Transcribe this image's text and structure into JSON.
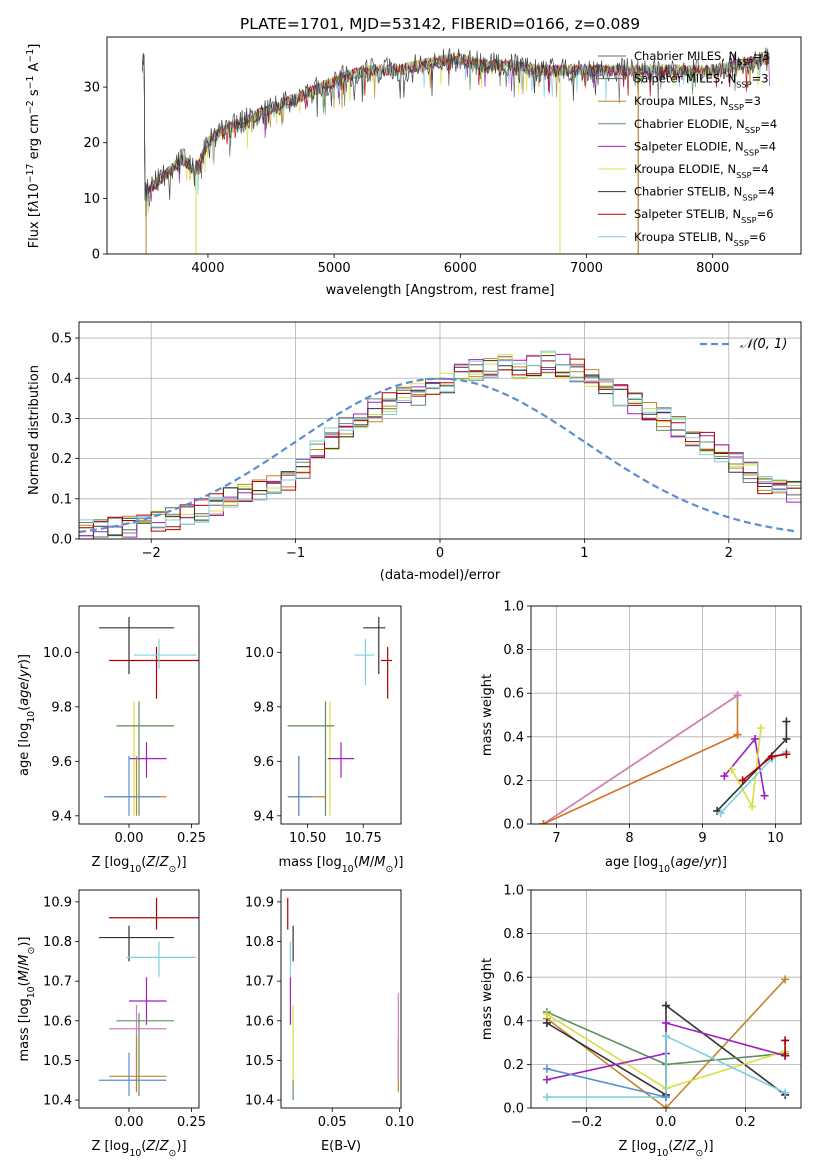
{
  "title": "PLATE=1701, MJD=53142, FIBERID=0166, z=0.089",
  "colors": {
    "CM": "#666666",
    "SM": "#666666",
    "KM": "#c0852c",
    "CE": "#5f8f5f",
    "SE": "#a020c0",
    "KE": "#d8e040",
    "CS": "#333333",
    "SS": "#b00000",
    "KS": "#80d0e0",
    "gauss": "#5b8fd0"
  },
  "chart_data": [
    {
      "type": "line",
      "id": "spectrum",
      "xlabel": "wavelength [Angstrom, rest frame]",
      "ylabel": "Flux [f",
      "xlim": [
        3200,
        8700
      ],
      "ylim": [
        0,
        39
      ],
      "xticks": [
        "4000",
        "5000",
        "6000",
        "7000",
        "8000"
      ],
      "yticks": [
        "0",
        "10",
        "20",
        "30"
      ],
      "legend": [
        "Chabrier MILES, N",
        "Salpeter MILES, N",
        "Kroupa MILES, N",
        "Chabrier ELODIE, N",
        "Salpeter ELODIE, N",
        "Kroupa ELODIE, N",
        "Chabrier STELIB, N",
        "Salpeter STELIB, N",
        "Kroupa STELIB, N"
      ],
      "legend_nssp": [
        "3",
        "3",
        "3",
        "4",
        "4",
        "4",
        "4",
        "6",
        "6"
      ],
      "legend_keys": [
        "CM",
        "SM",
        "KM",
        "CE",
        "SE",
        "KE",
        "CS",
        "SS",
        "KS"
      ],
      "data_envelope": {
        "x": [
          3500,
          3600,
          3800,
          3900,
          4000,
          4100,
          4300,
          4500,
          4700,
          4900,
          5000,
          5100,
          5300,
          5500,
          5700,
          5900,
          6000,
          6200,
          6400,
          6600,
          6800,
          7000,
          7200,
          7400,
          7600,
          7800,
          8000,
          8200,
          8400
        ],
        "y": [
          11,
          13,
          17,
          15,
          20,
          22,
          24,
          26,
          28,
          30,
          31,
          32,
          33,
          33,
          34,
          35,
          35,
          34,
          34,
          33,
          33,
          33,
          33,
          33,
          33,
          33,
          33,
          34,
          35
        ]
      }
    },
    {
      "type": "bar",
      "id": "residual-hist",
      "xlabel": "(data-model)/error",
      "ylabel": "Normed distribution",
      "xlim": [
        -2.5,
        2.5
      ],
      "ylim": [
        0,
        0.54
      ],
      "xticks": [
        "−2",
        "−1",
        "0",
        "1",
        "2"
      ],
      "yticks": [
        "0.0",
        "0.1",
        "0.2",
        "0.3",
        "0.4",
        "0.5"
      ],
      "legend": [
        "𝒩(0, 1)"
      ],
      "bin_width": 0.1,
      "bin_start": -2.5,
      "values": [
        0.018,
        0.022,
        0.026,
        0.03,
        0.035,
        0.043,
        0.05,
        0.058,
        0.07,
        0.085,
        0.1,
        0.11,
        0.12,
        0.13,
        0.15,
        0.18,
        0.22,
        0.25,
        0.28,
        0.3,
        0.32,
        0.335,
        0.35,
        0.36,
        0.38,
        0.39,
        0.41,
        0.42,
        0.43,
        0.44,
        0.42,
        0.43,
        0.44,
        0.43,
        0.42,
        0.41,
        0.39,
        0.36,
        0.34,
        0.32,
        0.3,
        0.28,
        0.26,
        0.24,
        0.22,
        0.19,
        0.17,
        0.14,
        0.13,
        0.12
      ]
    },
    {
      "type": "scatter",
      "id": "age-vs-Z",
      "xlabel": "Z [log",
      "ylabel": "age  [log",
      "xlim": [
        -0.2,
        0.28
      ],
      "ylim": [
        9.37,
        10.17
      ],
      "xticks": [
        "0.00",
        "0.25"
      ],
      "yticks": [
        "9.4",
        "9.6",
        "9.8",
        "10.0"
      ],
      "points": [
        {
          "k": "CS",
          "x": 0.0,
          "y": 10.09,
          "xe": [
            -0.12,
            0.18
          ],
          "ye": [
            9.92,
            10.13
          ]
        },
        {
          "k": "SS",
          "x": 0.11,
          "y": 9.97,
          "xe": [
            -0.08,
            0.28
          ],
          "ye": [
            9.83,
            10.02
          ]
        },
        {
          "k": "KS",
          "x": 0.12,
          "y": 9.99,
          "xe": [
            0.02,
            0.27
          ],
          "ye": [
            9.94,
            10.05
          ]
        },
        {
          "k": "KE",
          "x": 0.02,
          "y": 9.73,
          "xe": [
            -0.05,
            0.18
          ],
          "ye": [
            9.4,
            9.82
          ]
        },
        {
          "k": "CE",
          "x": 0.04,
          "y": 9.73,
          "xe": [
            -0.05,
            0.18
          ],
          "ye": [
            9.4,
            9.82
          ]
        },
        {
          "k": "SE",
          "x": 0.07,
          "y": 9.61,
          "xe": [
            0.0,
            0.15
          ],
          "ye": [
            9.54,
            9.67
          ]
        },
        {
          "k": "KM",
          "x": 0.03,
          "y": 9.47,
          "xe": [
            -0.08,
            0.15
          ],
          "ye": [
            9.4,
            9.62
          ]
        },
        {
          "k": "gauss",
          "x": 0.0,
          "y": 9.47,
          "xe": [
            -0.1,
            0.12
          ],
          "ye": [
            9.4,
            9.62
          ]
        }
      ]
    },
    {
      "type": "scatter",
      "id": "age-vs-mass",
      "xlabel": "mass [log",
      "xlim": [
        10.38,
        10.92
      ],
      "ylim": [
        9.37,
        10.17
      ],
      "xticks": [
        "10.50",
        "10.75"
      ],
      "yticks": [
        "9.4",
        "9.6",
        "9.8",
        "10.0"
      ],
      "points": [
        {
          "k": "CS",
          "x": 10.82,
          "y": 10.09,
          "xe": [
            10.75,
            10.85
          ],
          "ye": [
            9.92,
            10.13
          ]
        },
        {
          "k": "SS",
          "x": 10.86,
          "y": 9.97,
          "xe": [
            10.83,
            10.88
          ],
          "ye": [
            9.83,
            10.02
          ]
        },
        {
          "k": "KS",
          "x": 10.76,
          "y": 9.99,
          "xe": [
            10.71,
            10.8
          ],
          "ye": [
            9.88,
            10.05
          ]
        },
        {
          "k": "KE",
          "x": 10.6,
          "y": 9.73,
          "xe": [
            10.41,
            10.62
          ],
          "ye": [
            9.4,
            9.82
          ]
        },
        {
          "k": "CE",
          "x": 10.58,
          "y": 9.73,
          "xe": [
            10.41,
            10.62
          ],
          "ye": [
            9.4,
            9.82
          ]
        },
        {
          "k": "SE",
          "x": 10.65,
          "y": 9.61,
          "xe": [
            10.59,
            10.71
          ],
          "ye": [
            9.54,
            9.67
          ]
        },
        {
          "k": "KM",
          "x": 10.46,
          "y": 9.47,
          "xe": [
            10.42,
            10.58
          ],
          "ye": [
            9.4,
            9.62
          ]
        },
        {
          "k": "gauss",
          "x": 10.46,
          "y": 9.47,
          "xe": [
            10.41,
            10.52
          ],
          "ye": [
            9.4,
            9.62
          ]
        }
      ]
    },
    {
      "type": "line",
      "id": "mass-weight-vs-age",
      "xlabel": "age  [log",
      "ylabel": "mass weight",
      "xlim": [
        6.65,
        10.35
      ],
      "ylim": [
        0,
        1
      ],
      "xticks": [
        "7",
        "8",
        "9",
        "10"
      ],
      "yticks": [
        "0.0",
        "0.2",
        "0.4",
        "0.6",
        "0.8",
        "1.0"
      ],
      "series": [
        {
          "k": "KM",
          "x": [
            6.82,
            9.48,
            9.48
          ],
          "y": [
            0.0,
            0.59,
            0.41
          ]
        },
        {
          "k": "PK",
          "x": [
            6.82,
            9.48
          ],
          "y": [
            0.0,
            0.59
          ]
        },
        {
          "k": "KM2",
          "x": [
            6.82,
            9.48
          ],
          "y": [
            0.0,
            0.41
          ]
        },
        {
          "k": "SE",
          "x": [
            9.3,
            9.72,
            9.85
          ],
          "y": [
            0.22,
            0.39,
            0.13
          ]
        },
        {
          "k": "KE",
          "x": [
            9.4,
            9.68,
            9.8
          ],
          "y": [
            0.25,
            0.08,
            0.44
          ]
        },
        {
          "k": "CS",
          "x": [
            9.2,
            10.15,
            10.15
          ],
          "y": [
            0.06,
            0.39,
            0.47
          ]
        },
        {
          "k": "KS",
          "x": [
            9.25,
            9.95,
            10.15
          ],
          "y": [
            0.05,
            0.3,
            0.33
          ]
        },
        {
          "k": "SS",
          "x": [
            9.55,
            9.95,
            10.15
          ],
          "y": [
            0.2,
            0.31,
            0.32
          ]
        }
      ]
    },
    {
      "type": "scatter",
      "id": "mass-vs-Z",
      "xlabel": "Z [log",
      "ylabel": "mass [log",
      "xlim": [
        -0.2,
        0.28
      ],
      "ylim": [
        10.38,
        10.93
      ],
      "xticks": [
        "0.00",
        "0.25"
      ],
      "yticks": [
        "10.4",
        "10.5",
        "10.6",
        "10.7",
        "10.8",
        "10.9"
      ],
      "points": [
        {
          "k": "SS",
          "x": 0.11,
          "y": 10.86,
          "xe": [
            -0.08,
            0.28
          ],
          "ye": [
            10.83,
            10.91
          ]
        },
        {
          "k": "CS",
          "x": 0.0,
          "y": 10.81,
          "xe": [
            -0.12,
            0.18
          ],
          "ye": [
            10.75,
            10.84
          ]
        },
        {
          "k": "KS",
          "x": 0.12,
          "y": 10.76,
          "xe": [
            -0.01,
            0.27
          ],
          "ye": [
            10.71,
            10.8
          ]
        },
        {
          "k": "SE",
          "x": 0.07,
          "y": 10.65,
          "xe": [
            0.0,
            0.15
          ],
          "ye": [
            10.59,
            10.71
          ]
        },
        {
          "k": "CE",
          "x": 0.04,
          "y": 10.6,
          "xe": [
            -0.05,
            0.18
          ],
          "ye": [
            10.41,
            10.62
          ]
        },
        {
          "k": "PK",
          "x": 0.03,
          "y": 10.58,
          "xe": [
            -0.08,
            0.15
          ],
          "ye": [
            10.42,
            10.64
          ]
        },
        {
          "k": "KM",
          "x": 0.03,
          "y": 10.46,
          "xe": [
            -0.08,
            0.15
          ],
          "ye": [
            10.42,
            10.56
          ]
        },
        {
          "k": "gauss",
          "x": 0.0,
          "y": 10.45,
          "xe": [
            -0.12,
            0.15
          ],
          "ye": [
            10.41,
            10.52
          ]
        }
      ]
    },
    {
      "type": "scatter",
      "id": "mass-vs-ebv",
      "xlabel": "E(B-V)",
      "xlim": [
        0.012,
        0.101
      ],
      "ylim": [
        10.38,
        10.93
      ],
      "xticks": [
        "0.05",
        "0.10"
      ],
      "yticks": [
        "10.4",
        "10.5",
        "10.6",
        "10.7",
        "10.8",
        "10.9"
      ],
      "points": [
        {
          "k": "SS",
          "x": 0.017,
          "y": 10.86,
          "ye": [
            10.83,
            10.91
          ]
        },
        {
          "k": "CS",
          "x": 0.021,
          "y": 10.81,
          "ye": [
            10.75,
            10.84
          ]
        },
        {
          "k": "KS",
          "x": 0.019,
          "y": 10.76,
          "ye": [
            10.71,
            10.8
          ]
        },
        {
          "k": "SE",
          "x": 0.019,
          "y": 10.65,
          "ye": [
            10.59,
            10.71
          ]
        },
        {
          "k": "KE",
          "x": 0.021,
          "y": 10.55,
          "ye": [
            10.45,
            10.64
          ]
        },
        {
          "k": "CE",
          "x": 0.021,
          "y": 10.42,
          "ye": [
            10.4,
            10.45
          ]
        },
        {
          "k": "KM",
          "x": 0.099,
          "y": 10.46,
          "ye": [
            10.42,
            10.56
          ]
        },
        {
          "k": "PK",
          "x": 0.099,
          "y": 10.58,
          "ye": [
            10.45,
            10.67
          ]
        }
      ]
    },
    {
      "type": "line",
      "id": "mass-weight-vs-Z",
      "xlabel": "Z [log",
      "ylabel": "mass weight",
      "xlim": [
        -0.34,
        0.34
      ],
      "ylim": [
        0,
        1
      ],
      "xticks": [
        "−0.2",
        "0.0",
        "0.2"
      ],
      "yticks": [
        "0.0",
        "0.2",
        "0.4",
        "0.6",
        "0.8",
        "1.0"
      ],
      "series": [
        {
          "k": "KM",
          "x": [
            -0.3,
            0.0,
            0.3
          ],
          "y": [
            0.41,
            0.0,
            0.59
          ]
        },
        {
          "k": "CS",
          "x": [
            -0.3,
            0.0,
            0.0,
            0.3
          ],
          "y": [
            0.39,
            0.06,
            0.47,
            0.06
          ]
        },
        {
          "k": "CE",
          "x": [
            -0.3,
            0.0,
            0.3
          ],
          "y": [
            0.44,
            0.2,
            0.25
          ]
        },
        {
          "k": "KE",
          "x": [
            -0.3,
            0.0,
            0.3
          ],
          "y": [
            0.43,
            0.09,
            0.26
          ]
        },
        {
          "k": "SE",
          "x": [
            -0.3,
            0.0,
            0.0,
            0.3
          ],
          "y": [
            0.13,
            0.25,
            0.39,
            0.24
          ]
        },
        {
          "k": "KS",
          "x": [
            -0.3,
            0.0,
            0.0,
            0.3
          ],
          "y": [
            0.05,
            0.05,
            0.33,
            0.07
          ]
        },
        {
          "k": "gauss",
          "x": [
            -0.3,
            0.0
          ],
          "y": [
            0.18,
            0.05
          ]
        },
        {
          "k": "SS",
          "x": [
            0.3,
            0.3
          ],
          "y": [
            0.31,
            0.24
          ]
        }
      ]
    }
  ]
}
